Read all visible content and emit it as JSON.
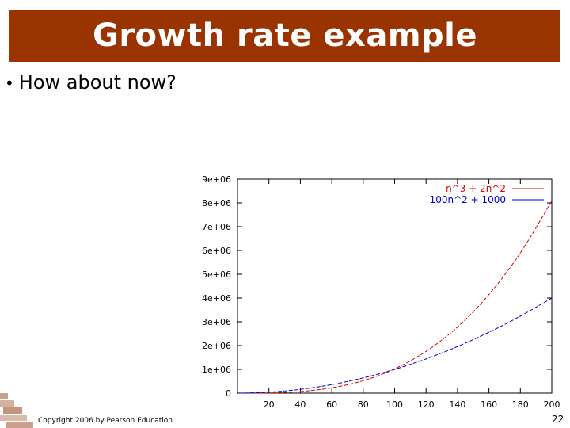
{
  "slide": {
    "title": "Growth rate example",
    "bullet": "How about now?",
    "footer": "Copyright 2006 by Pearson Education",
    "page_number": "22",
    "colors": {
      "title_bar": "#993300",
      "title_text": "#ffffff"
    }
  },
  "chart_data": {
    "type": "line",
    "title": "",
    "xlabel": "",
    "ylabel": "",
    "xlim": [
      0,
      200
    ],
    "ylim": [
      0,
      9000000
    ],
    "x_ticks": [
      20,
      40,
      60,
      80,
      100,
      120,
      140,
      160,
      180,
      200
    ],
    "y_ticks": [
      0,
      1000000,
      2000000,
      3000000,
      4000000,
      5000000,
      6000000,
      7000000,
      8000000,
      9000000
    ],
    "y_tick_labels": [
      "0",
      "1e+06",
      "2e+06",
      "3e+06",
      "4e+06",
      "5e+06",
      "6e+06",
      "7e+06",
      "8e+06",
      "9e+06"
    ],
    "legend_position": "top-right",
    "grid": false,
    "series": [
      {
        "name": "n^3 + 2n^2",
        "color": "#dd0000",
        "x": [
          1,
          20,
          40,
          60,
          80,
          100,
          120,
          140,
          160,
          180,
          200
        ],
        "y": [
          3,
          8800,
          67200,
          223200,
          524800,
          1020000,
          1756800,
          2783200,
          4147200,
          5896800,
          8080000
        ]
      },
      {
        "name": "100n^2 + 1000",
        "color": "#0000cc",
        "x": [
          1,
          20,
          40,
          60,
          80,
          100,
          120,
          140,
          160,
          180,
          200
        ],
        "y": [
          1100,
          41000,
          161000,
          361000,
          641000,
          1001000,
          1441000,
          1961000,
          2561000,
          3241000,
          4001000
        ]
      }
    ]
  }
}
